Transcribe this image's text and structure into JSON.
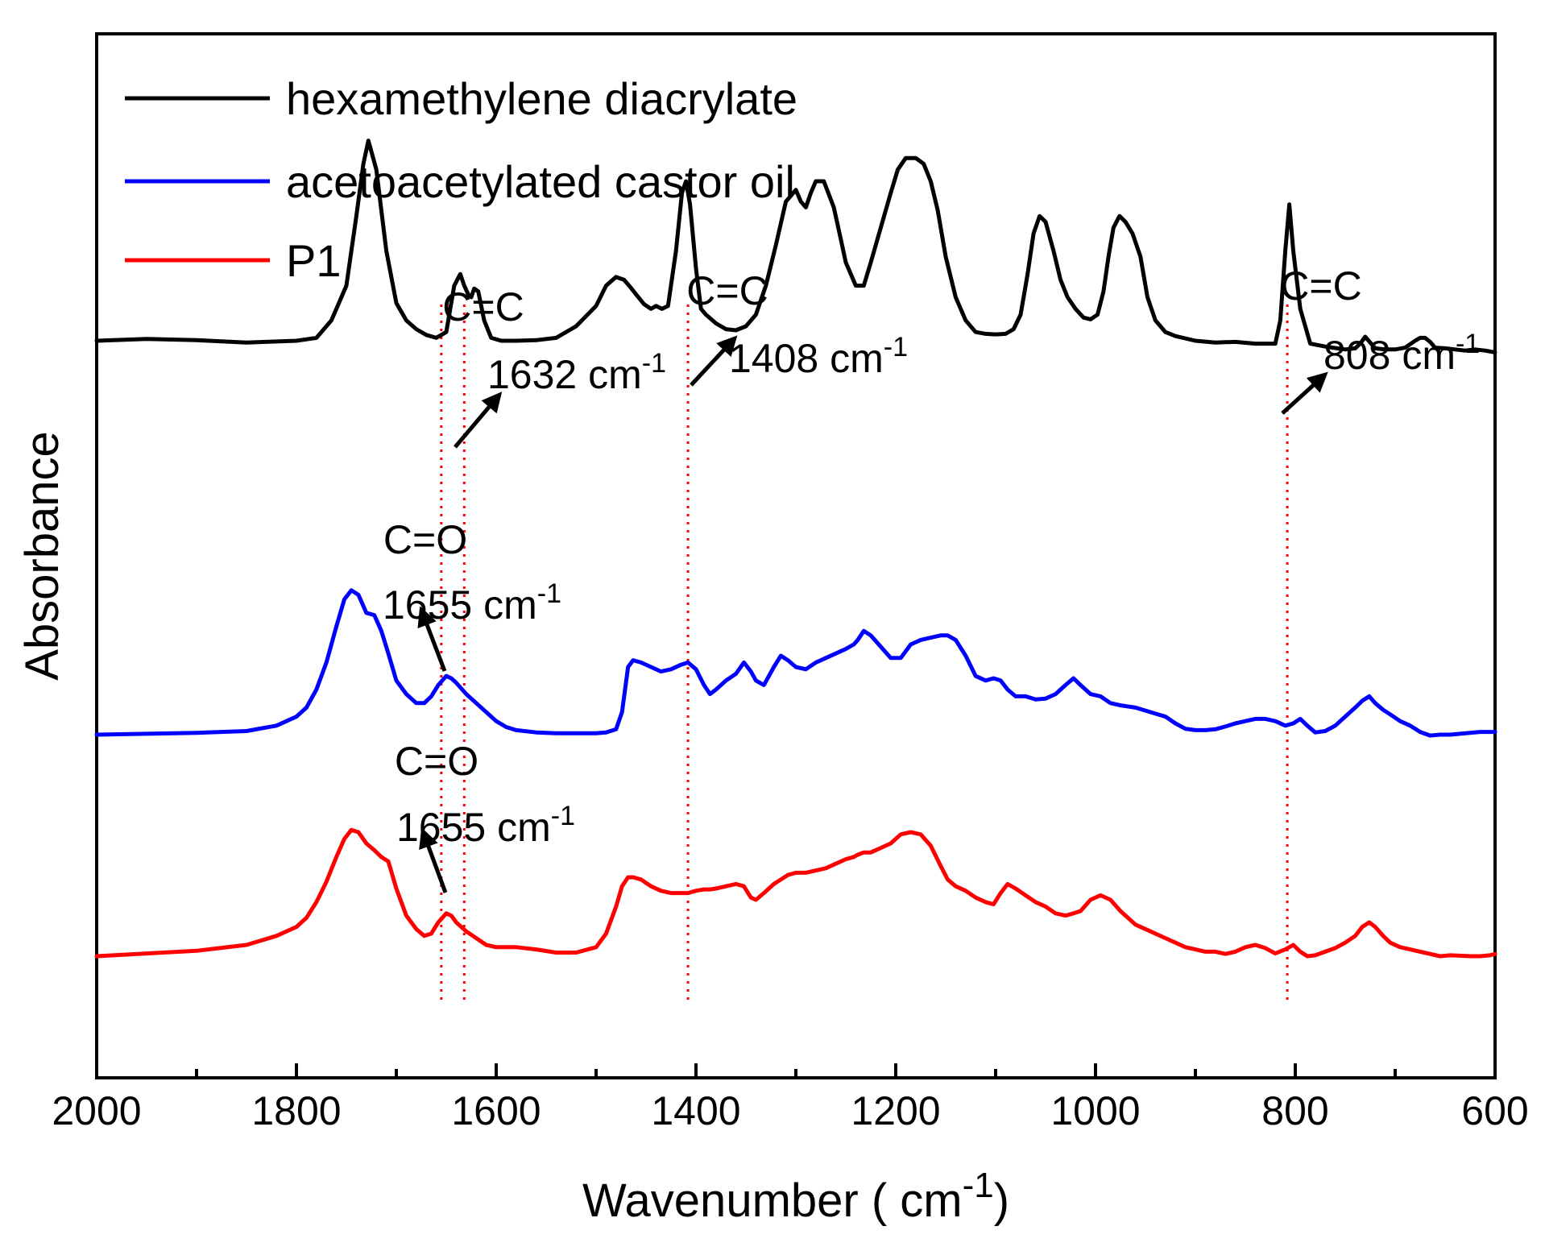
{
  "chart_data": {
    "type": "line",
    "title": "",
    "xlabel": "Wavenumber",
    "xlabel_unit": "cm",
    "xlabel_unit_exp": "-1",
    "ylabel": "Absorbance",
    "xlim": [
      2000,
      600
    ],
    "x_reversed": true,
    "xticks": [
      2000,
      1800,
      1600,
      1400,
      1200,
      1000,
      800,
      600
    ],
    "ylim": [
      0,
      1
    ],
    "yticks_shown": false,
    "grid": false,
    "legend": {
      "position": "top-left",
      "entries": [
        {
          "label": "hexamethylene diacrylate",
          "color": "#000000"
        },
        {
          "label": "acetoacetylated castor oil",
          "color": "#0000ff"
        },
        {
          "label": "P1",
          "color": "#ff0000"
        }
      ]
    },
    "series": [
      {
        "name": "hexamethylene diacrylate",
        "color": "#000000",
        "x": [
          2000,
          1950,
          1900,
          1850,
          1800,
          1780,
          1765,
          1750,
          1740,
          1733,
          1728,
          1720,
          1710,
          1700,
          1690,
          1680,
          1670,
          1660,
          1650,
          1642,
          1636,
          1632,
          1628,
          1625,
          1622,
          1618,
          1612,
          1605,
          1595,
          1580,
          1560,
          1540,
          1520,
          1500,
          1490,
          1480,
          1472,
          1466,
          1460,
          1452,
          1445,
          1440,
          1434,
          1428,
          1420,
          1414,
          1410,
          1406,
          1400,
          1395,
          1390,
          1380,
          1370,
          1360,
          1350,
          1340,
          1330,
          1320,
          1310,
          1300,
          1295,
          1290,
          1285,
          1280,
          1272,
          1262,
          1255,
          1250,
          1240,
          1232,
          1225,
          1215,
          1205,
          1198,
          1190,
          1180,
          1172,
          1165,
          1158,
          1150,
          1140,
          1130,
          1120,
          1110,
          1100,
          1090,
          1082,
          1075,
          1068,
          1062,
          1056,
          1050,
          1042,
          1035,
          1028,
          1020,
          1012,
          1005,
          998,
          992,
          987,
          982,
          976,
          970,
          963,
          955,
          948,
          940,
          930,
          920,
          900,
          880,
          860,
          840,
          820,
          815,
          810,
          806,
          802,
          795,
          785,
          770,
          750,
          740,
          735,
          730,
          725,
          720,
          710,
          700,
          690,
          680,
          675,
          670,
          665,
          660,
          650,
          640,
          630,
          620,
          610,
          600
        ],
        "y": [
          0.325,
          0.328,
          0.326,
          0.322,
          0.325,
          0.33,
          0.36,
          0.42,
          0.54,
          0.63,
          0.67,
          0.62,
          0.48,
          0.39,
          0.36,
          0.345,
          0.335,
          0.33,
          0.34,
          0.42,
          0.44,
          0.42,
          0.405,
          0.4,
          0.415,
          0.41,
          0.36,
          0.33,
          0.325,
          0.325,
          0.326,
          0.33,
          0.35,
          0.385,
          0.42,
          0.435,
          0.43,
          0.418,
          0.405,
          0.388,
          0.38,
          0.385,
          0.38,
          0.385,
          0.48,
          0.58,
          0.6,
          0.56,
          0.45,
          0.38,
          0.37,
          0.355,
          0.345,
          0.343,
          0.35,
          0.37,
          0.42,
          0.49,
          0.565,
          0.585,
          0.565,
          0.555,
          0.58,
          0.6,
          0.6,
          0.555,
          0.5,
          0.46,
          0.42,
          0.42,
          0.46,
          0.52,
          0.58,
          0.62,
          0.64,
          0.64,
          0.63,
          0.6,
          0.55,
          0.47,
          0.4,
          0.36,
          0.34,
          0.337,
          0.336,
          0.337,
          0.345,
          0.37,
          0.44,
          0.51,
          0.54,
          0.53,
          0.48,
          0.43,
          0.4,
          0.38,
          0.365,
          0.362,
          0.37,
          0.41,
          0.47,
          0.52,
          0.54,
          0.53,
          0.51,
          0.47,
          0.4,
          0.36,
          0.34,
          0.333,
          0.325,
          0.322,
          0.323,
          0.32,
          0.32,
          0.36,
          0.48,
          0.56,
          0.48,
          0.38,
          0.32,
          0.315,
          0.31,
          0.312,
          0.32,
          0.332,
          0.322,
          0.312,
          0.31,
          0.31,
          0.313,
          0.325,
          0.33,
          0.33,
          0.323,
          0.313,
          0.312,
          0.31,
          0.308,
          0.31,
          0.308,
          0.305
        ]
      },
      {
        "name": "acetoacetylated castor oil",
        "color": "#0000ff",
        "x": [
          2000,
          1950,
          1900,
          1850,
          1820,
          1800,
          1790,
          1780,
          1770,
          1760,
          1752,
          1745,
          1738,
          1730,
          1722,
          1715,
          1708,
          1700,
          1690,
          1680,
          1672,
          1665,
          1658,
          1650,
          1645,
          1640,
          1630,
          1620,
          1610,
          1600,
          1590,
          1580,
          1560,
          1540,
          1520,
          1500,
          1490,
          1480,
          1474,
          1468,
          1463,
          1455,
          1445,
          1435,
          1425,
          1415,
          1408,
          1400,
          1392,
          1386,
          1380,
          1370,
          1360,
          1352,
          1345,
          1340,
          1332,
          1322,
          1315,
          1308,
          1300,
          1290,
          1280,
          1270,
          1260,
          1250,
          1242,
          1238,
          1232,
          1225,
          1215,
          1205,
          1195,
          1185,
          1175,
          1165,
          1155,
          1148,
          1140,
          1130,
          1120,
          1110,
          1102,
          1095,
          1088,
          1080,
          1070,
          1060,
          1050,
          1040,
          1030,
          1022,
          1015,
          1005,
          995,
          985,
          975,
          960,
          945,
          930,
          920,
          910,
          900,
          890,
          880,
          870,
          860,
          850,
          840,
          830,
          820,
          810,
          802,
          795,
          788,
          780,
          770,
          760,
          750,
          740,
          733,
          726,
          720,
          712,
          705,
          695,
          685,
          675,
          665,
          655,
          645,
          635,
          625,
          615,
          605,
          600
        ],
        "y": [
          0.0,
          0.002,
          0.004,
          0.008,
          0.02,
          0.04,
          0.06,
          0.1,
          0.16,
          0.24,
          0.3,
          0.32,
          0.31,
          0.27,
          0.265,
          0.23,
          0.18,
          0.12,
          0.09,
          0.07,
          0.07,
          0.085,
          0.11,
          0.13,
          0.125,
          0.115,
          0.09,
          0.07,
          0.05,
          0.03,
          0.017,
          0.01,
          0.005,
          0.003,
          0.003,
          0.003,
          0.005,
          0.012,
          0.05,
          0.15,
          0.165,
          0.16,
          0.15,
          0.14,
          0.145,
          0.155,
          0.16,
          0.145,
          0.11,
          0.09,
          0.1,
          0.12,
          0.135,
          0.16,
          0.14,
          0.12,
          0.11,
          0.15,
          0.175,
          0.165,
          0.15,
          0.145,
          0.16,
          0.17,
          0.18,
          0.19,
          0.2,
          0.21,
          0.23,
          0.22,
          0.195,
          0.17,
          0.17,
          0.2,
          0.21,
          0.215,
          0.22,
          0.22,
          0.21,
          0.175,
          0.13,
          0.12,
          0.125,
          0.12,
          0.1,
          0.085,
          0.085,
          0.078,
          0.08,
          0.09,
          0.11,
          0.125,
          0.11,
          0.09,
          0.085,
          0.07,
          0.065,
          0.06,
          0.05,
          0.04,
          0.025,
          0.013,
          0.01,
          0.01,
          0.012,
          0.018,
          0.025,
          0.03,
          0.035,
          0.035,
          0.03,
          0.02,
          0.025,
          0.035,
          0.02,
          0.005,
          0.008,
          0.02,
          0.04,
          0.06,
          0.075,
          0.085,
          0.07,
          0.055,
          0.045,
          0.03,
          0.02,
          0.006,
          -0.002,
          0.0,
          0.0,
          0.002,
          0.004,
          0.006,
          0.006,
          0.006
        ]
      },
      {
        "name": "P1",
        "color": "#ff0000",
        "x": [
          2000,
          1950,
          1900,
          1850,
          1820,
          1800,
          1790,
          1780,
          1770,
          1760,
          1752,
          1745,
          1738,
          1730,
          1722,
          1715,
          1708,
          1700,
          1690,
          1680,
          1672,
          1665,
          1658,
          1650,
          1645,
          1640,
          1630,
          1620,
          1610,
          1600,
          1590,
          1580,
          1560,
          1540,
          1520,
          1500,
          1490,
          1480,
          1474,
          1468,
          1463,
          1455,
          1445,
          1435,
          1425,
          1415,
          1408,
          1400,
          1392,
          1386,
          1380,
          1370,
          1360,
          1352,
          1345,
          1340,
          1332,
          1322,
          1315,
          1308,
          1300,
          1290,
          1280,
          1270,
          1260,
          1250,
          1242,
          1238,
          1232,
          1225,
          1215,
          1205,
          1195,
          1185,
          1175,
          1165,
          1155,
          1148,
          1140,
          1130,
          1120,
          1110,
          1102,
          1095,
          1088,
          1080,
          1070,
          1060,
          1050,
          1040,
          1030,
          1022,
          1015,
          1005,
          995,
          985,
          975,
          960,
          945,
          930,
          920,
          910,
          900,
          890,
          880,
          870,
          860,
          850,
          840,
          830,
          820,
          810,
          802,
          795,
          788,
          780,
          770,
          760,
          750,
          740,
          733,
          726,
          720,
          712,
          705,
          695,
          685,
          675,
          665,
          655,
          645,
          635,
          625,
          615,
          605,
          600
        ],
        "y": [
          0.0,
          0.006,
          0.012,
          0.025,
          0.045,
          0.065,
          0.085,
          0.12,
          0.165,
          0.22,
          0.26,
          0.28,
          0.275,
          0.25,
          0.235,
          0.22,
          0.21,
          0.15,
          0.09,
          0.06,
          0.045,
          0.05,
          0.075,
          0.095,
          0.09,
          0.075,
          0.055,
          0.04,
          0.025,
          0.02,
          0.02,
          0.02,
          0.015,
          0.008,
          0.008,
          0.02,
          0.05,
          0.11,
          0.155,
          0.175,
          0.175,
          0.17,
          0.155,
          0.145,
          0.14,
          0.14,
          0.14,
          0.145,
          0.148,
          0.148,
          0.15,
          0.155,
          0.16,
          0.155,
          0.13,
          0.125,
          0.14,
          0.16,
          0.17,
          0.18,
          0.185,
          0.185,
          0.19,
          0.195,
          0.205,
          0.215,
          0.22,
          0.225,
          0.23,
          0.23,
          0.24,
          0.25,
          0.27,
          0.275,
          0.27,
          0.245,
          0.2,
          0.17,
          0.155,
          0.145,
          0.13,
          0.12,
          0.115,
          0.14,
          0.16,
          0.15,
          0.135,
          0.12,
          0.11,
          0.095,
          0.09,
          0.095,
          0.1,
          0.125,
          0.135,
          0.125,
          0.1,
          0.07,
          0.055,
          0.04,
          0.03,
          0.02,
          0.015,
          0.01,
          0.01,
          0.005,
          0.01,
          0.02,
          0.025,
          0.018,
          0.006,
          0.015,
          0.025,
          0.01,
          0.0,
          0.002,
          0.01,
          0.018,
          0.03,
          0.045,
          0.065,
          0.075,
          0.065,
          0.045,
          0.03,
          0.02,
          0.015,
          0.01,
          0.005,
          0.0,
          0.002,
          0.001,
          0.0,
          0.0,
          0.002,
          0.005
        ]
      }
    ],
    "reference_lines": [
      {
        "x": 1655,
        "color": "#ff0000",
        "style": "dotted"
      },
      {
        "x": 1632,
        "color": "#ff0000",
        "style": "dotted"
      },
      {
        "x": 1408,
        "color": "#ff0000",
        "style": "dotted"
      },
      {
        "x": 808,
        "color": "#ff0000",
        "style": "dotted"
      }
    ],
    "annotations": [
      {
        "id": "cc1632",
        "label": "C=C",
        "value": "1632",
        "unit": "cm",
        "exp": "-1",
        "series": "hexamethylene diacrylate",
        "x": 1632
      },
      {
        "id": "cc1408",
        "label": "C=C",
        "value": "1408",
        "unit": "cm",
        "exp": "-1",
        "series": "hexamethylene diacrylate",
        "x": 1408
      },
      {
        "id": "cc808",
        "label": "C=C",
        "value": "808",
        "unit": "cm",
        "exp": "-1",
        "series": "hexamethylene diacrylate",
        "x": 808
      },
      {
        "id": "co1655a",
        "label": "C=O",
        "value": "1655",
        "unit": "cm",
        "exp": "-1",
        "series": "acetoacetylated castor oil",
        "x": 1655
      },
      {
        "id": "co1655b",
        "label": "C=O",
        "value": "1655",
        "unit": "cm",
        "exp": "-1",
        "series": "P1",
        "x": 1655
      }
    ]
  }
}
